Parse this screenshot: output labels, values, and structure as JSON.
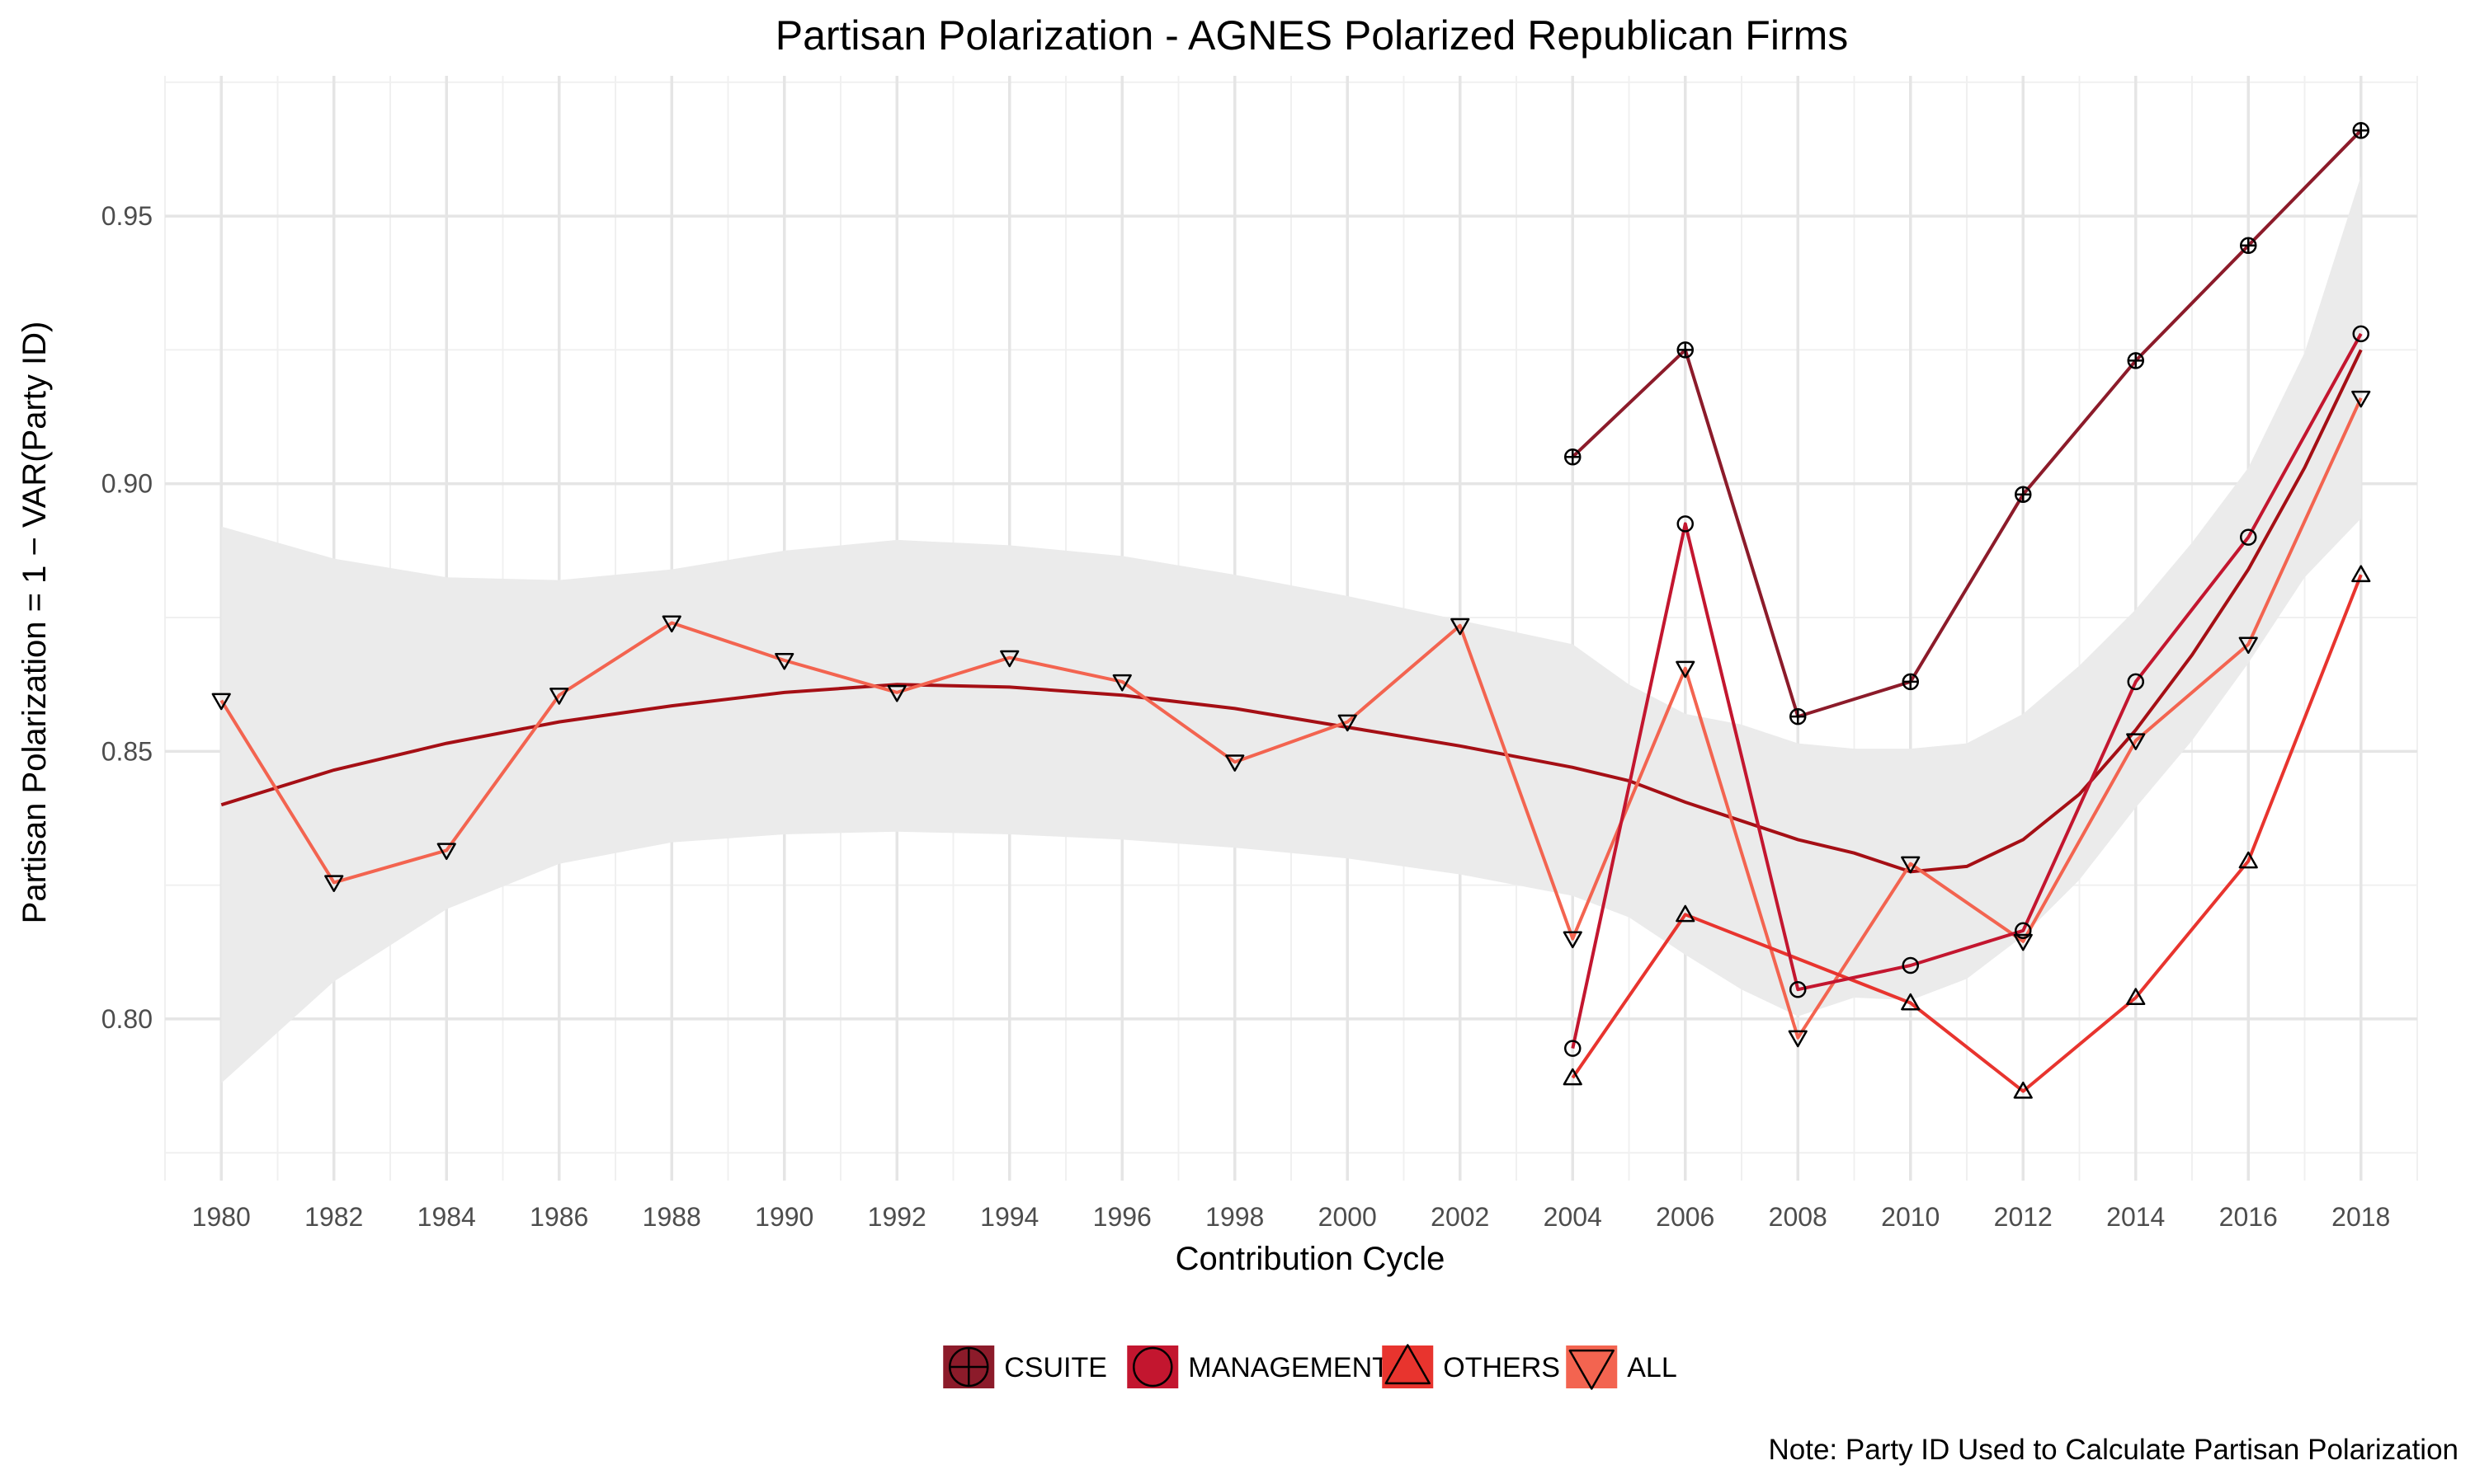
{
  "chart_data": {
    "type": "line",
    "title": "Partisan Polarization - AGNES Polarized Republican Firms",
    "xlabel": "Contribution Cycle",
    "ylabel": "Partisan Polarization = 1 − VAR(Party ID)",
    "caption": "Note: Party ID Used to Calculate Partisan Polarization",
    "xlim": [
      1979,
      2019
    ],
    "ylim": [
      0.7698,
      0.9762
    ],
    "x_ticks": [
      "1980",
      "1982",
      "1984",
      "1986",
      "1988",
      "1990",
      "1992",
      "1994",
      "1996",
      "1998",
      "2000",
      "2002",
      "2004",
      "2006",
      "2008",
      "2010",
      "2012",
      "2014",
      "2016",
      "2018"
    ],
    "y_ticks": [
      "0.80",
      "0.85",
      "0.90",
      "0.95"
    ],
    "y_tick_values": [
      0.8,
      0.85,
      0.9,
      0.95
    ],
    "grid": true,
    "legend": {
      "position": "bottom"
    },
    "series": [
      {
        "name": "CSUITE",
        "color": "#8c1b2a",
        "marker": "circle-plus",
        "x": [
          2004,
          2006,
          2008,
          2010,
          2012,
          2014,
          2016,
          2018
        ],
        "y": [
          0.905,
          0.925,
          0.8565,
          0.863,
          0.898,
          0.923,
          0.9445,
          0.966
        ]
      },
      {
        "name": "MANAGEMENT",
        "color": "#c3162f",
        "marker": "circle",
        "x": [
          2004,
          2006,
          2008,
          2010,
          2012,
          2014,
          2016,
          2018
        ],
        "y": [
          0.7945,
          0.8925,
          0.8055,
          0.81,
          0.8165,
          0.863,
          0.89,
          0.928
        ]
      },
      {
        "name": "OTHERS",
        "color": "#e8342e",
        "marker": "triangle-up",
        "x": [
          2004,
          2006,
          2010,
          2012,
          2014,
          2016,
          2018
        ],
        "y": [
          0.789,
          0.8195,
          0.803,
          0.7865,
          0.804,
          0.8295,
          0.883
        ]
      },
      {
        "name": "ALL",
        "color": "#f36450",
        "marker": "triangle-down",
        "x": [
          1980,
          1982,
          1984,
          1986,
          1988,
          1990,
          1992,
          1994,
          1996,
          1998,
          2000,
          2002,
          2004,
          2006,
          2008,
          2010,
          2012,
          2014,
          2016,
          2018
        ],
        "y": [
          0.8595,
          0.8255,
          0.8315,
          0.8605,
          0.874,
          0.867,
          0.861,
          0.8675,
          0.863,
          0.848,
          0.8555,
          0.8735,
          0.815,
          0.8655,
          0.7965,
          0.829,
          0.8145,
          0.852,
          0.87,
          0.916
        ]
      }
    ],
    "smooth": {
      "color": "#a50f15",
      "band_color": "#ebebeb",
      "x": [
        1980,
        1982,
        1984,
        1986,
        1988,
        1990,
        1992,
        1994,
        1996,
        1998,
        2000,
        2002,
        2004,
        2005,
        2006,
        2007,
        2008,
        2009,
        2010,
        2011,
        2012,
        2013,
        2014,
        2015,
        2016,
        2017,
        2018
      ],
      "y": [
        0.84,
        0.8465,
        0.8515,
        0.8555,
        0.8585,
        0.861,
        0.8625,
        0.862,
        0.8605,
        0.858,
        0.8545,
        0.851,
        0.847,
        0.8445,
        0.8405,
        0.837,
        0.8335,
        0.831,
        0.8275,
        0.8285,
        0.8335,
        0.842,
        0.854,
        0.868,
        0.884,
        0.903,
        0.925
      ],
      "lo": [
        0.788,
        0.807,
        0.8205,
        0.829,
        0.833,
        0.8345,
        0.835,
        0.8345,
        0.8335,
        0.832,
        0.83,
        0.827,
        0.823,
        0.819,
        0.812,
        0.8055,
        0.8005,
        0.804,
        0.8035,
        0.8075,
        0.8155,
        0.826,
        0.8395,
        0.852,
        0.8665,
        0.8825,
        0.8935
      ],
      "hi": [
        0.892,
        0.886,
        0.8825,
        0.882,
        0.884,
        0.8875,
        0.8895,
        0.8885,
        0.8865,
        0.883,
        0.879,
        0.8745,
        0.87,
        0.8625,
        0.857,
        0.855,
        0.8515,
        0.8505,
        0.8505,
        0.8515,
        0.857,
        0.866,
        0.8765,
        0.889,
        0.903,
        0.9245,
        0.9575
      ]
    }
  }
}
